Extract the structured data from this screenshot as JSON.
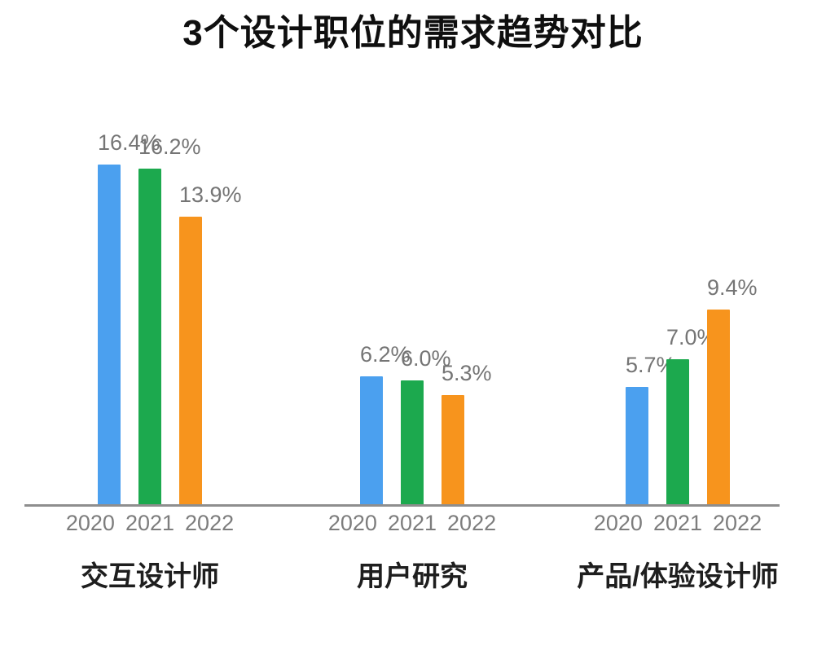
{
  "chart_data": {
    "type": "bar",
    "title": "3个设计职位的需求趋势对比",
    "categories": [
      "交互设计师",
      "用户研究",
      "产品/体验设计师"
    ],
    "x_ticks": [
      "2020",
      "2021",
      "2022"
    ],
    "series": [
      {
        "name": "2020",
        "color": "#4BA0EF",
        "values": [
          16.4,
          6.2,
          5.7
        ],
        "labels": [
          "16.4%",
          "6.2%",
          "5.7%"
        ]
      },
      {
        "name": "2021",
        "color": "#1CA94E",
        "values": [
          16.2,
          6.0,
          7.0
        ],
        "labels": [
          "16.2%",
          "6.0%",
          "7.0%"
        ]
      },
      {
        "name": "2022",
        "color": "#F7941D",
        "values": [
          13.9,
          5.3,
          9.4
        ],
        "labels": [
          "13.9%",
          "5.3%",
          "9.4%"
        ]
      }
    ],
    "ylim": [
      0,
      18
    ],
    "grid": false,
    "legend": "none",
    "value_label_color": "#757575",
    "tick_label_color": "#7D7D7D",
    "category_label_color": "#1E1E1E",
    "axis_line_color": "#8E8E8E"
  }
}
